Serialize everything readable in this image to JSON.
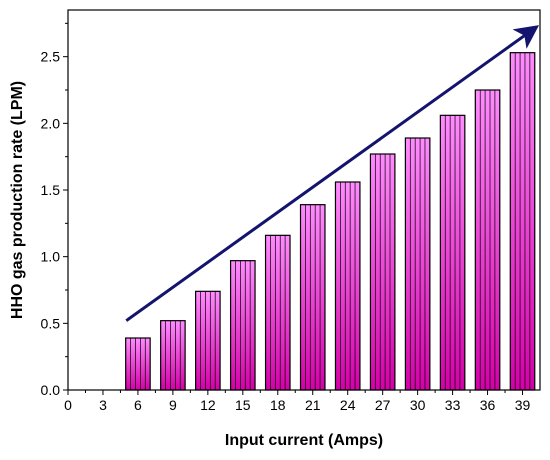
{
  "chart_data": {
    "type": "bar",
    "xlabel": "Input current (Amps)",
    "ylabel": "HHO gas production rate (LPM)",
    "x_ticks": [
      0,
      3,
      6,
      9,
      12,
      15,
      18,
      21,
      24,
      27,
      30,
      33,
      36,
      39
    ],
    "y_ticks": [
      "0.0",
      "0.5",
      "1.0",
      "1.5",
      "2.0",
      "2.5"
    ],
    "xlim": [
      0,
      40.5
    ],
    "ylim": [
      0,
      2.85
    ],
    "x": [
      6,
      9,
      12,
      15,
      18,
      21,
      24,
      27,
      30,
      33,
      36,
      39
    ],
    "values": [
      0.39,
      0.52,
      0.74,
      0.97,
      1.16,
      1.39,
      1.56,
      1.77,
      1.89,
      2.06,
      2.25,
      2.53
    ],
    "bar_width": 2.1,
    "grid": false,
    "trend_arrow": {
      "from": [
        5,
        0.52
      ],
      "to": [
        40,
        2.71
      ]
    },
    "colors": {
      "bar_top": "#ff8cff",
      "bar_bottom": "#d400a8",
      "bar_stroke": "#000000",
      "arrow": "#14146e"
    }
  }
}
